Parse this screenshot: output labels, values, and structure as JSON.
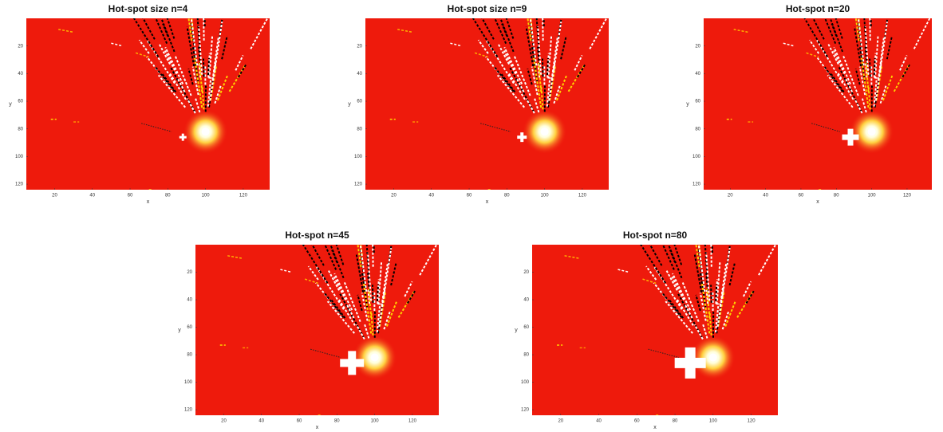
{
  "panels": [
    {
      "title": "Hot-spot size n=4",
      "xlabel": "x",
      "ylabel": "y",
      "xlim": [
        5,
        134
      ],
      "ylim": [
        0,
        124
      ],
      "xticks": [
        20,
        40,
        60,
        80,
        100,
        120
      ],
      "yticks": [
        20,
        40,
        60,
        80,
        100,
        120
      ]
    },
    {
      "title": "Hot-spot size n=9",
      "xlabel": "x",
      "ylabel": "y",
      "xlim": [
        5,
        134
      ],
      "ylim": [
        0,
        124
      ],
      "xticks": [
        20,
        40,
        60,
        80,
        100,
        120
      ],
      "yticks": [
        20,
        40,
        60,
        80,
        100,
        120
      ]
    },
    {
      "title": "Hot-spot n=20",
      "xlabel": "x",
      "ylabel": "y",
      "xlim": [
        5,
        134
      ],
      "ylim": [
        0,
        124
      ],
      "xticks": [
        20,
        40,
        60,
        80,
        100,
        120
      ],
      "yticks": [
        20,
        40,
        60,
        80,
        100,
        120
      ]
    },
    {
      "title": "Hot-spot n=45",
      "xlabel": "x",
      "ylabel": "y",
      "xlim": [
        5,
        134
      ],
      "ylim": [
        0,
        124
      ],
      "xticks": [
        20,
        40,
        60,
        80,
        100,
        120
      ],
      "yticks": [
        20,
        40,
        60,
        80,
        100,
        120
      ]
    },
    {
      "title": "Hot-spot n=80",
      "xlabel": "x",
      "ylabel": "y",
      "xlim": [
        5,
        134
      ],
      "ylim": [
        0,
        124
      ],
      "xticks": [
        20,
        40,
        60,
        80,
        100,
        120
      ],
      "yticks": [
        20,
        40,
        60,
        80,
        100,
        120
      ]
    }
  ]
}
